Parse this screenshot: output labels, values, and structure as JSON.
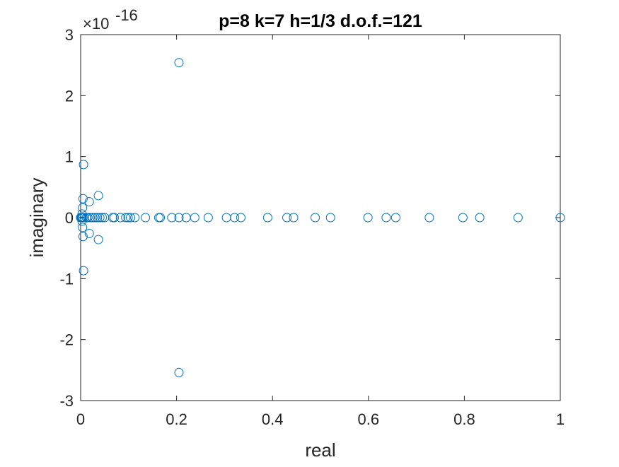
{
  "chart_data": {
    "type": "scatter",
    "title": "p=8 k=7 h=1/3 d.o.f.=121",
    "xlabel": "real",
    "ylabel": "imaginary",
    "xlim": [
      0,
      1
    ],
    "ylim": [
      -3,
      3
    ],
    "y_multiplier_label": "×10",
    "y_multiplier_exponent": "-16",
    "x_ticks": [
      "0",
      "0.2",
      "0.4",
      "0.6",
      "0.8",
      "1"
    ],
    "y_ticks": [
      "-3",
      "-2",
      "-1",
      "0",
      "1",
      "2",
      "3"
    ],
    "grid": false,
    "marker": "open-circle",
    "color": "#0072BD",
    "series": [
      {
        "x": [
          1.0,
          0.912,
          0.832,
          0.797,
          0.727,
          0.657,
          0.637,
          0.599,
          0.521,
          0.489,
          0.444,
          0.43,
          0.39,
          0.334,
          0.321,
          0.304,
          0.266,
          0.238,
          0.22,
          0.205,
          0.19,
          0.166,
          0.163,
          0.135,
          0.113,
          0.104,
          0.099,
          0.094,
          0.083,
          0.07,
          0.067,
          0.05,
          0.045,
          0.04,
          0.035,
          0.03,
          0.025,
          0.02,
          0.015,
          0.012,
          0.008,
          0.005,
          0.003,
          0.002,
          0.001,
          0.0,
          0.205,
          0.205,
          0.037,
          0.037,
          0.018,
          0.018,
          0.006,
          0.006,
          0.005,
          0.005,
          0.004,
          0.004,
          0.003,
          0.003
        ],
        "y": [
          0,
          0,
          0,
          0,
          0,
          0,
          0,
          0,
          0,
          0,
          0,
          0,
          0,
          0,
          0,
          0,
          0,
          0,
          0,
          0,
          0,
          0,
          0,
          0,
          0,
          0,
          0,
          0,
          0,
          0,
          0,
          0,
          0,
          0,
          0,
          0,
          0,
          0,
          0,
          0,
          0,
          0,
          0,
          0,
          0,
          0,
          2.54,
          -2.54,
          0.36,
          -0.36,
          0.26,
          -0.26,
          0.87,
          -0.87,
          0.31,
          -0.31,
          0.16,
          -0.16,
          0.06,
          -0.06
        ]
      }
    ]
  }
}
